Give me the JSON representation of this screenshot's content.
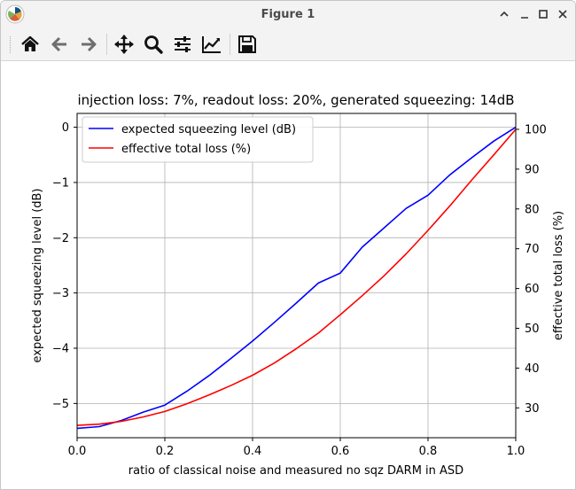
{
  "window": {
    "title": "Figure 1"
  },
  "toolbar": {
    "buttons": [
      {
        "name": "home-button",
        "icon": "home-icon"
      },
      {
        "name": "back-button",
        "icon": "arrow-left-icon"
      },
      {
        "name": "forward-button",
        "icon": "arrow-right-icon"
      },
      {
        "name": "pan-button",
        "icon": "move-icon"
      },
      {
        "name": "zoom-button",
        "icon": "magnifier-icon"
      },
      {
        "name": "configure-subplots-button",
        "icon": "sliders-icon"
      },
      {
        "name": "edit-axis-button",
        "icon": "line-chart-icon"
      },
      {
        "name": "save-button",
        "icon": "floppy-disk-icon"
      }
    ]
  },
  "chart_data": {
    "type": "line",
    "title": "injection loss: 7%, readout loss: 20%, generated squeezing: 14dB",
    "xlabel": "ratio of classical noise and measured no sqz DARM in ASD",
    "ylabel": "expected squeezing level (dB)",
    "y2label": "effective total loss (%)",
    "xlim": [
      0.0,
      1.0
    ],
    "ylim": [
      -5.62,
      0.25
    ],
    "y2lim": [
      22.5,
      104.0
    ],
    "x_ticks": [
      "0.0",
      "0.2",
      "0.4",
      "0.6",
      "0.8",
      "1.0"
    ],
    "y_ticks": [
      "0",
      "−1",
      "−2",
      "−3",
      "−4",
      "−5"
    ],
    "y2_ticks": [
      "100",
      "90",
      "80",
      "70",
      "60",
      "50",
      "40",
      "30"
    ],
    "grid": true,
    "legend_position": "top-left",
    "series": [
      {
        "name": "expected squeezing level (dB)",
        "axis": "left",
        "color": "#0000ff",
        "x": [
          0.0,
          0.05,
          0.1,
          0.15,
          0.2,
          0.25,
          0.3,
          0.35,
          0.4,
          0.45,
          0.5,
          0.55,
          0.6,
          0.65,
          0.7,
          0.75,
          0.8,
          0.85,
          0.9,
          0.95,
          1.0
        ],
        "y": [
          -5.45,
          -5.42,
          -5.31,
          -5.16,
          -5.03,
          -4.78,
          -4.5,
          -4.19,
          -3.87,
          -3.53,
          -3.18,
          -2.82,
          -2.64,
          -2.17,
          -1.82,
          -1.47,
          -1.23,
          -0.86,
          -0.55,
          -0.25,
          0.0
        ]
      },
      {
        "name": "effective total loss (%)",
        "axis": "right",
        "color": "#ff0000",
        "x": [
          0.0,
          0.05,
          0.1,
          0.15,
          0.2,
          0.25,
          0.3,
          0.35,
          0.4,
          0.45,
          0.5,
          0.55,
          0.6,
          0.65,
          0.7,
          0.75,
          0.8,
          0.85,
          0.9,
          0.95,
          1.0
        ],
        "y": [
          25.6,
          25.9,
          26.6,
          27.7,
          29.1,
          31.0,
          33.2,
          35.6,
          38.2,
          41.3,
          44.9,
          48.8,
          53.4,
          58.2,
          63.2,
          68.7,
          74.6,
          80.8,
          87.3,
          93.6,
          100.0
        ]
      }
    ]
  }
}
